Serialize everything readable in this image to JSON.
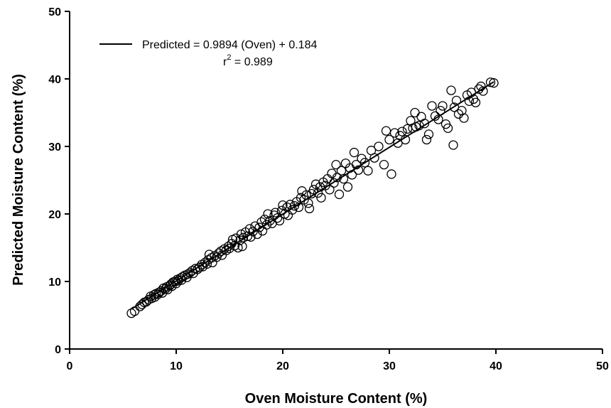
{
  "chart_data": {
    "type": "scatter",
    "xlabel": "Oven Moisture Content (%)",
    "ylabel": "Predicted Moisture Content (%)",
    "xlim": [
      0,
      50
    ],
    "ylim": [
      0,
      50
    ],
    "x_ticks": [
      0,
      10,
      20,
      30,
      40,
      50
    ],
    "y_ticks": [
      0,
      10,
      20,
      30,
      40,
      50
    ],
    "grid": false,
    "legend_position": "top-left",
    "marker": "open-circle",
    "colors": {
      "marker": "#000000",
      "line": "#000000"
    },
    "fit_line": {
      "label": "Predicted = 0.9894 (Oven) + 0.184",
      "slope": 0.9894,
      "intercept": 0.184,
      "x_range": [
        5.8,
        39.8
      ]
    },
    "r2": {
      "prefix": "r",
      "superscript": "2",
      "value_text": " = 0.989"
    },
    "points": [
      [
        5.8,
        5.3
      ],
      [
        6.1,
        5.6
      ],
      [
        6.6,
        6.3
      ],
      [
        6.8,
        6.6
      ],
      [
        7.0,
        6.9
      ],
      [
        7.2,
        7.0
      ],
      [
        7.4,
        7.3
      ],
      [
        7.6,
        7.8
      ],
      [
        7.7,
        7.5
      ],
      [
        7.9,
        8.0
      ],
      [
        8.0,
        7.7
      ],
      [
        8.1,
        8.2
      ],
      [
        8.3,
        8.1
      ],
      [
        8.4,
        8.4
      ],
      [
        8.6,
        8.6
      ],
      [
        8.7,
        8.3
      ],
      [
        8.8,
        9.0
      ],
      [
        9.0,
        8.9
      ],
      [
        9.1,
        9.2
      ],
      [
        9.2,
        8.8
      ],
      [
        9.4,
        9.4
      ],
      [
        9.5,
        9.6
      ],
      [
        9.6,
        9.3
      ],
      [
        9.7,
        9.9
      ],
      [
        9.9,
        10.0
      ],
      [
        10.0,
        9.7
      ],
      [
        10.1,
        10.3
      ],
      [
        10.2,
        10.1
      ],
      [
        10.4,
        10.5
      ],
      [
        10.5,
        10.2
      ],
      [
        10.6,
        10.7
      ],
      [
        10.8,
        10.9
      ],
      [
        11.0,
        10.6
      ],
      [
        11.1,
        11.1
      ],
      [
        11.3,
        11.3
      ],
      [
        11.5,
        11.6
      ],
      [
        11.6,
        11.2
      ],
      [
        11.8,
        11.9
      ],
      [
        12.0,
        11.8
      ],
      [
        12.2,
        12.1
      ],
      [
        12.4,
        12.5
      ],
      [
        12.5,
        12.2
      ],
      [
        12.7,
        12.8
      ],
      [
        12.9,
        12.6
      ],
      [
        13.0,
        13.2
      ],
      [
        13.1,
        14.0
      ],
      [
        13.3,
        13.5
      ],
      [
        13.4,
        12.8
      ],
      [
        13.6,
        13.8
      ],
      [
        13.8,
        13.6
      ],
      [
        14.0,
        14.2
      ],
      [
        14.2,
        14.5
      ],
      [
        14.3,
        13.9
      ],
      [
        14.5,
        14.8
      ],
      [
        14.7,
        14.6
      ],
      [
        14.9,
        15.2
      ],
      [
        15.0,
        14.9
      ],
      [
        15.2,
        15.6
      ],
      [
        15.3,
        16.2
      ],
      [
        15.5,
        15.3
      ],
      [
        15.6,
        16.4
      ],
      [
        15.8,
        15.0
      ],
      [
        16.0,
        16.1
      ],
      [
        16.1,
        17.0
      ],
      [
        16.2,
        15.2
      ],
      [
        16.3,
        16.5
      ],
      [
        16.5,
        17.3
      ],
      [
        16.7,
        16.7
      ],
      [
        16.9,
        17.8
      ],
      [
        17.0,
        16.6
      ],
      [
        17.2,
        17.4
      ],
      [
        17.4,
        18.2
      ],
      [
        17.6,
        17.0
      ],
      [
        17.8,
        18.0
      ],
      [
        18.0,
        18.8
      ],
      [
        18.1,
        17.5
      ],
      [
        18.3,
        19.2
      ],
      [
        18.5,
        18.4
      ],
      [
        18.6,
        20.0
      ],
      [
        18.8,
        19.0
      ],
      [
        19.0,
        18.6
      ],
      [
        19.2,
        19.8
      ],
      [
        19.3,
        20.2
      ],
      [
        19.5,
        19.4
      ],
      [
        19.7,
        19.0
      ],
      [
        19.9,
        20.5
      ],
      [
        20.0,
        21.3
      ],
      [
        20.2,
        20.0
      ],
      [
        20.4,
        21.0
      ],
      [
        20.5,
        19.8
      ],
      [
        20.7,
        21.4
      ],
      [
        20.9,
        20.6
      ],
      [
        21.1,
        21.2
      ],
      [
        21.3,
        21.8
      ],
      [
        21.5,
        21.0
      ],
      [
        21.7,
        22.4
      ],
      [
        21.8,
        23.4
      ],
      [
        22.0,
        22.1
      ],
      [
        22.2,
        22.8
      ],
      [
        22.4,
        21.6
      ],
      [
        22.5,
        20.8
      ],
      [
        22.7,
        23.0
      ],
      [
        22.9,
        23.6
      ],
      [
        23.1,
        24.4
      ],
      [
        23.3,
        23.1
      ],
      [
        23.5,
        24.0
      ],
      [
        23.6,
        22.4
      ],
      [
        23.8,
        24.7
      ],
      [
        24.0,
        24.2
      ],
      [
        24.2,
        25.2
      ],
      [
        24.4,
        23.6
      ],
      [
        24.6,
        26.0
      ],
      [
        24.8,
        24.6
      ],
      [
        25.0,
        27.3
      ],
      [
        25.1,
        25.4
      ],
      [
        25.3,
        22.9
      ],
      [
        25.5,
        26.4
      ],
      [
        25.7,
        25.2
      ],
      [
        25.9,
        27.5
      ],
      [
        26.1,
        24.0
      ],
      [
        26.3,
        26.8
      ],
      [
        26.5,
        25.8
      ],
      [
        26.7,
        29.1
      ],
      [
        26.9,
        27.3
      ],
      [
        27.1,
        26.5
      ],
      [
        27.4,
        28.2
      ],
      [
        27.7,
        27.6
      ],
      [
        28.0,
        26.4
      ],
      [
        28.3,
        29.4
      ],
      [
        28.6,
        28.3
      ],
      [
        29.0,
        30.0
      ],
      [
        29.5,
        27.3
      ],
      [
        29.7,
        32.3
      ],
      [
        30.0,
        31.0
      ],
      [
        30.2,
        25.9
      ],
      [
        30.5,
        32.0
      ],
      [
        30.8,
        30.5
      ],
      [
        31.0,
        31.6
      ],
      [
        31.2,
        32.2
      ],
      [
        31.5,
        31.0
      ],
      [
        31.7,
        32.6
      ],
      [
        32.0,
        33.8
      ],
      [
        32.2,
        32.7
      ],
      [
        32.4,
        35.0
      ],
      [
        32.5,
        32.9
      ],
      [
        32.8,
        33.1
      ],
      [
        33.0,
        34.4
      ],
      [
        33.3,
        33.4
      ],
      [
        33.5,
        31.0
      ],
      [
        33.7,
        31.8
      ],
      [
        34.0,
        36.0
      ],
      [
        34.3,
        34.5
      ],
      [
        34.6,
        34.0
      ],
      [
        34.8,
        35.3
      ],
      [
        35.0,
        36.0
      ],
      [
        35.3,
        33.3
      ],
      [
        35.5,
        32.7
      ],
      [
        35.8,
        38.3
      ],
      [
        36.0,
        30.2
      ],
      [
        36.1,
        35.8
      ],
      [
        36.3,
        36.8
      ],
      [
        36.5,
        34.8
      ],
      [
        36.8,
        35.3
      ],
      [
        37.0,
        34.2
      ],
      [
        37.3,
        37.6
      ],
      [
        37.5,
        36.7
      ],
      [
        37.7,
        38.0
      ],
      [
        37.9,
        37.0
      ],
      [
        38.1,
        36.5
      ],
      [
        38.4,
        38.5
      ],
      [
        38.6,
        38.9
      ],
      [
        38.8,
        38.2
      ],
      [
        39.5,
        39.5
      ],
      [
        39.8,
        39.4
      ]
    ]
  }
}
